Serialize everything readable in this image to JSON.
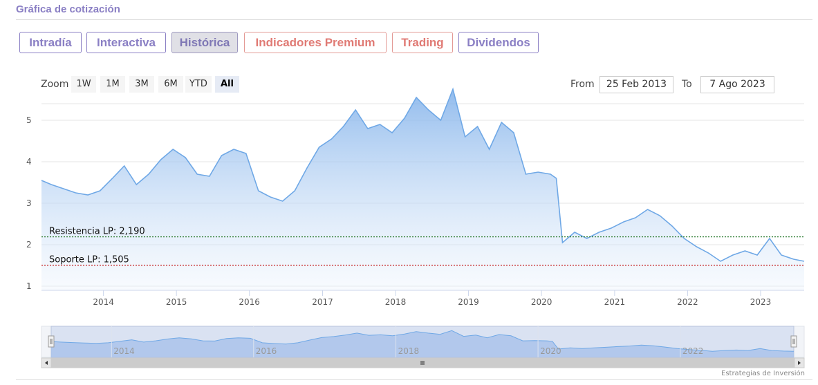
{
  "header": {
    "title": "Gráfica de cotización"
  },
  "tabs": [
    {
      "label": "Intradía",
      "style": "purple"
    },
    {
      "label": "Interactiva",
      "style": "purple"
    },
    {
      "label": "Histórica",
      "style": "active"
    },
    {
      "label": "Indicadores Premium",
      "style": "red"
    },
    {
      "label": "Trading",
      "style": "red"
    },
    {
      "label": "Dividendos",
      "style": "purple"
    }
  ],
  "zoom": {
    "label": "Zoom",
    "buttons": [
      "1W",
      "1M",
      "3M",
      "6M",
      "YTD",
      "All"
    ],
    "selected": "All"
  },
  "range": {
    "from_label": "From",
    "from_value": "25 Feb 2013",
    "to_label": "To",
    "to_value": "7 Ago 2023"
  },
  "credits": "Estrategias de Inversión",
  "colors": {
    "line": "#6fa8e6",
    "resistance": "#2e7d32",
    "support": "#c62828",
    "navigator_fill": "#c9d6ee"
  },
  "chart_data": {
    "type": "area",
    "ylim": [
      1,
      5.5
    ],
    "yticks": [
      1,
      2,
      3,
      4,
      5
    ],
    "xticks": [
      "2014",
      "2015",
      "2016",
      "2017",
      "2018",
      "2019",
      "2020",
      "2021",
      "2022",
      "2023"
    ],
    "navigator_ticks": [
      "2014",
      "2016",
      "2018",
      "2020",
      "2022"
    ],
    "x": [
      "2013-02-25",
      "2013-04",
      "2013-06",
      "2013-08",
      "2013-10",
      "2013-12",
      "2014-02",
      "2014-04",
      "2014-06",
      "2014-08",
      "2014-10",
      "2014-12",
      "2015-02",
      "2015-04",
      "2015-06",
      "2015-08",
      "2015-10",
      "2015-12",
      "2016-02",
      "2016-04",
      "2016-06",
      "2016-08",
      "2016-10",
      "2016-12",
      "2017-02",
      "2017-04",
      "2017-06",
      "2017-08",
      "2017-10",
      "2017-12",
      "2018-02",
      "2018-04",
      "2018-06",
      "2018-08",
      "2018-10",
      "2018-12",
      "2019-02",
      "2019-04",
      "2019-06",
      "2019-08",
      "2019-10",
      "2019-12",
      "2020-02",
      "2020-03",
      "2020-04",
      "2020-06",
      "2020-08",
      "2020-10",
      "2020-12",
      "2021-02",
      "2021-04",
      "2021-06",
      "2021-08",
      "2021-10",
      "2021-12",
      "2022-02",
      "2022-04",
      "2022-06",
      "2022-08",
      "2022-10",
      "2022-12",
      "2023-02",
      "2023-04",
      "2023-06",
      "2023-08-07"
    ],
    "values": [
      3.55,
      3.45,
      3.35,
      3.25,
      3.2,
      3.3,
      3.6,
      3.9,
      3.45,
      3.7,
      4.05,
      4.3,
      4.1,
      3.7,
      3.65,
      4.15,
      4.3,
      4.2,
      3.3,
      3.15,
      3.05,
      3.3,
      3.85,
      4.35,
      4.55,
      4.85,
      5.25,
      4.8,
      4.9,
      4.7,
      5.05,
      5.55,
      5.25,
      5.0,
      5.75,
      4.6,
      4.85,
      4.3,
      4.95,
      4.7,
      3.7,
      3.75,
      3.7,
      3.6,
      2.05,
      2.3,
      2.15,
      2.3,
      2.4,
      2.55,
      2.65,
      2.85,
      2.7,
      2.45,
      2.15,
      1.95,
      1.8,
      1.6,
      1.75,
      1.85,
      1.75,
      2.15,
      1.75,
      1.65,
      1.6
    ],
    "series": [
      {
        "name": "Resistencia LP: 2,190",
        "type": "hline",
        "value": 2.19
      },
      {
        "name": "Soporte LP: 1,505",
        "type": "hline",
        "value": 1.505
      }
    ],
    "grid": true,
    "legend": "none"
  }
}
